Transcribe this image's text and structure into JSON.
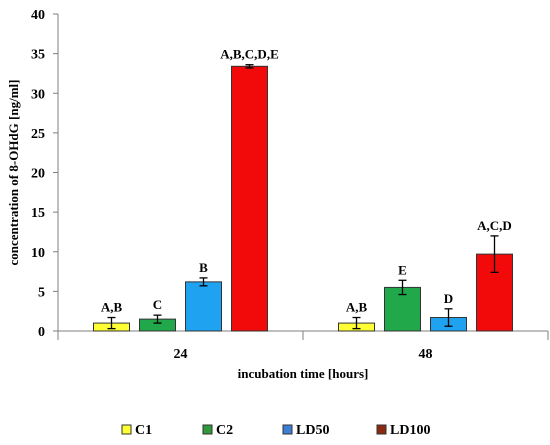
{
  "chart_data": {
    "type": "bar",
    "xlabel": "incubation  time  [hours]",
    "ylabel": "concentration  of  8-OHdG  [ng/ml]",
    "ylim": [
      0,
      40
    ],
    "yticks": [
      0,
      5,
      10,
      15,
      20,
      25,
      30,
      35,
      40
    ],
    "categories": [
      "24",
      "48"
    ],
    "grid": false,
    "legend_position": "bottom",
    "series": [
      {
        "name": "C1",
        "color": "#ffff33",
        "values": [
          1.0,
          1.0
        ],
        "errors": [
          0.7,
          0.7
        ],
        "labels": [
          "A,B",
          "A,B"
        ]
      },
      {
        "name": "C2",
        "color": "#21a84a",
        "values": [
          1.5,
          5.5
        ],
        "errors": [
          0.5,
          0.9
        ],
        "labels": [
          "C",
          "E"
        ]
      },
      {
        "name": "LD50",
        "color": "#1fa2f0",
        "values": [
          6.2,
          1.7
        ],
        "errors": [
          0.5,
          1.1
        ],
        "labels": [
          "B",
          "D"
        ]
      },
      {
        "name": "LD100",
        "color": "#f20a0a",
        "values": [
          33.4,
          9.7
        ],
        "errors": [
          0.2,
          2.3
        ],
        "labels": [
          "A,B,C,D,E",
          "A,C,D"
        ]
      }
    ]
  },
  "legend_colors": [
    "#ffff33",
    "#2f9a3a",
    "#3d7fd6",
    "#8b2a0e"
  ]
}
